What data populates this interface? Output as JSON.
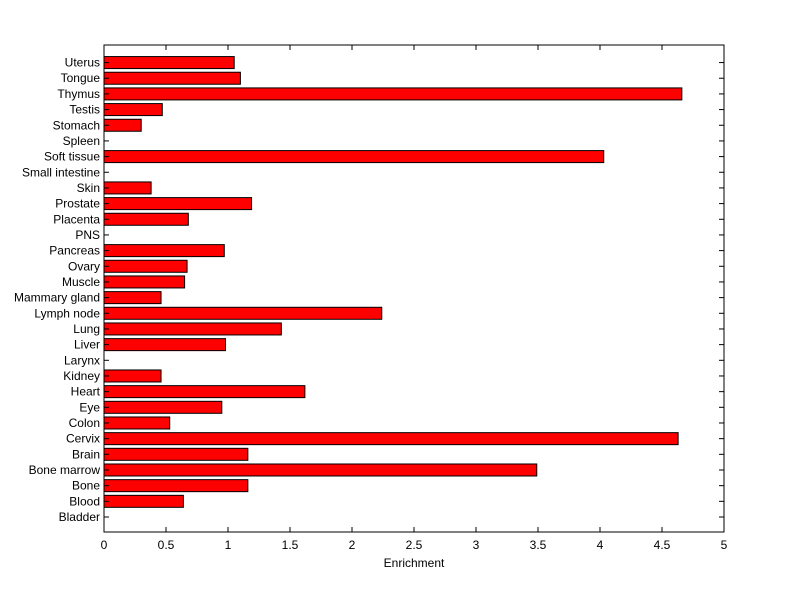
{
  "chart_data": {
    "type": "bar",
    "orientation": "horizontal",
    "title": "",
    "xlabel": "Enrichment",
    "ylabel": "",
    "xlim": [
      0,
      5
    ],
    "xticks": [
      "0",
      "0.5",
      "1",
      "1.5",
      "2",
      "2.5",
      "3",
      "3.5",
      "4",
      "4.5",
      "5"
    ],
    "grid": false,
    "categories": [
      "Bladder",
      "Blood",
      "Bone",
      "Bone marrow",
      "Brain",
      "Cervix",
      "Colon",
      "Eye",
      "Heart",
      "Kidney",
      "Larynx",
      "Liver",
      "Lung",
      "Lymph node",
      "Mammary gland",
      "Muscle",
      "Ovary",
      "Pancreas",
      "PNS",
      "Placenta",
      "Prostate",
      "Skin",
      "Small intestine",
      "Soft tissue",
      "Spleen",
      "Stomach",
      "Testis",
      "Thymus",
      "Tongue",
      "Uterus"
    ],
    "values": [
      0,
      0.64,
      1.16,
      3.49,
      1.16,
      4.63,
      0.53,
      0.95,
      1.62,
      0.46,
      0,
      0.98,
      1.43,
      2.24,
      0.46,
      0.65,
      0.67,
      0.97,
      0,
      0.68,
      1.19,
      0.38,
      0,
      4.03,
      0,
      0.3,
      0.47,
      4.66,
      1.1,
      1.05
    ],
    "bar_color": "#ff0000",
    "edge_color": "#000000"
  }
}
